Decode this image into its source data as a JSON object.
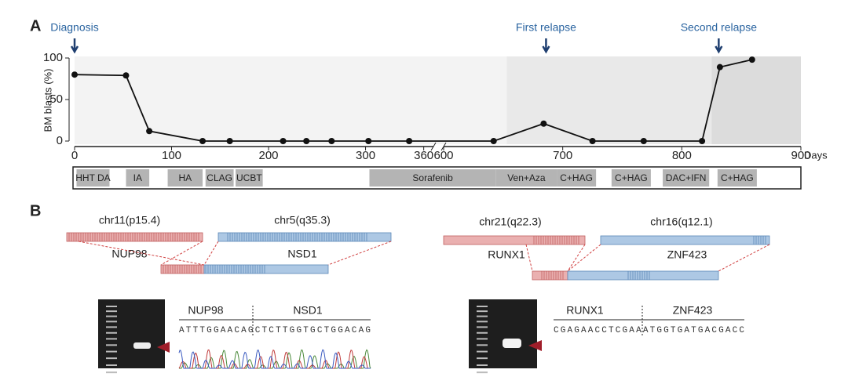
{
  "chart_data": {
    "type": "line",
    "panel": "A",
    "ylabel": "BM blasts (%)",
    "xlabel": "Days",
    "x": [
      0,
      53,
      77,
      132,
      160,
      215,
      239,
      265,
      303,
      345,
      642,
      684,
      725,
      768,
      817,
      832,
      859
    ],
    "values": [
      80,
      79,
      12,
      0,
      0,
      0,
      0,
      0,
      0,
      0,
      0,
      21,
      0,
      0,
      0,
      89,
      98
    ],
    "color": "#111111",
    "ylim": [
      0,
      100
    ],
    "yticks": [
      0,
      50,
      100
    ],
    "xlim_segments": [
      [
        0,
        370
      ],
      [
        600,
        900
      ]
    ],
    "xticks": [
      0,
      100,
      200,
      300,
      360,
      600,
      700,
      800,
      900
    ],
    "shaded": [
      {
        "x": [
          0,
          653
        ],
        "color": "#f3f3f3"
      },
      {
        "x": [
          653,
          825
        ],
        "color": "#e9e9e9"
      },
      {
        "x": [
          825,
          900
        ],
        "color": "#dcdcdc"
      }
    ],
    "annotations": [
      {
        "text": "Diagnosis",
        "x": 0
      },
      {
        "text": "First relapse",
        "x": 686
      },
      {
        "text": "Second relapse",
        "x": 831
      }
    ],
    "treatments": [
      {
        "name": "HHT DA",
        "x": [
          2,
          36
        ]
      },
      {
        "name": "IA",
        "x": [
          53,
          77
        ]
      },
      {
        "name": "HA",
        "x": [
          96,
          132
        ]
      },
      {
        "name": "CLAG",
        "x": [
          135,
          164
        ]
      },
      {
        "name": "UCBT",
        "x": [
          166,
          194
        ]
      },
      {
        "name": "Sorafenib",
        "x": [
          304,
          644
        ]
      },
      {
        "name": "Ven+Aza",
        "x": [
          644,
          695
        ]
      },
      {
        "name": "C+HAG",
        "x": [
          695,
          728
        ]
      },
      {
        "name": "C+HAG",
        "x": [
          741,
          774
        ]
      },
      {
        "name": "DAC+IFN",
        "x": [
          784,
          823
        ]
      },
      {
        "name": "C+HAG",
        "x": [
          830,
          863
        ]
      }
    ]
  },
  "panel_b": {
    "label": "B",
    "left": {
      "chr_a": "chr11(p15.4)",
      "chr_b": "chr5(q35.3)",
      "gene_a": "NUP98",
      "gene_b": "NSD1",
      "sequence": "ATTTGGAACAGCTCTTGGTGCTGGACAG"
    },
    "right": {
      "chr_a": "chr21(q22.3)",
      "chr_b": "chr16(q12.1)",
      "gene_a": "RUNX1",
      "gene_b": "ZNF423",
      "sequence": "CGAGAACCTCGAAATGGTGATGACGACC"
    }
  }
}
